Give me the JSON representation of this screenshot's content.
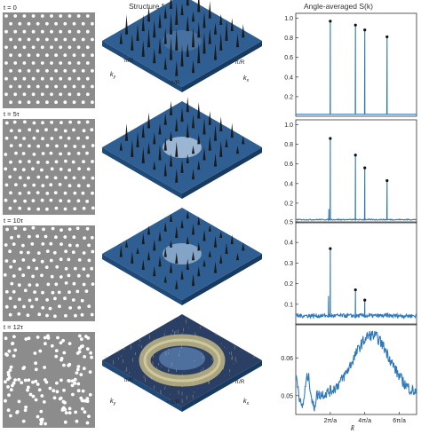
{
  "headers": {
    "col2": "Structure factor, S(k)",
    "col3": "Angle-averaged S(k)"
  },
  "colors": {
    "panel_gray": "#8c8c8c",
    "particle": "#ffffff",
    "line": "#2f78b9",
    "marker": "#111111",
    "surface_blue": "#2f5f92",
    "ring_yellow": "#b8b083"
  },
  "chart_data": [
    {
      "type": "scatter",
      "name": "particles-0",
      "time_label": "t = 0",
      "arrangement": "triangular-lattice",
      "particle_color": "#ffffff",
      "background_color": "#8c8c8c"
    },
    {
      "type": "scatter",
      "name": "particles-1",
      "time_label": "t = 5τ",
      "arrangement": "mostly-ordered",
      "particle_color": "#ffffff",
      "background_color": "#8c8c8c"
    },
    {
      "type": "scatter",
      "name": "particles-2",
      "time_label": "t = 10τ",
      "arrangement": "partly-ordered",
      "particle_color": "#ffffff",
      "background_color": "#8c8c8c"
    },
    {
      "type": "scatter",
      "name": "particles-3",
      "time_label": "t = 12τ",
      "arrangement": "disordered",
      "particle_color": "#ffffff",
      "background_color": "#8c8c8c"
    },
    {
      "type": "heatmap",
      "name": "structure-factor-0",
      "surface": "sharp-bragg-peaks",
      "axis_labels": {
        "ky": "k_y",
        "kx": "k_x"
      },
      "tick_labels": [
        "π/R",
        "−π/R",
        "π/R",
        "−π/R"
      ],
      "show_ky_label": false,
      "show_kx_label": true,
      "tick_labels_shown": [
        "π/R",
        "−π/R",
        "π/R"
      ]
    },
    {
      "type": "heatmap",
      "name": "structure-factor-1",
      "surface": "bragg-peaks-diffuse-center"
    },
    {
      "type": "heatmap",
      "name": "structure-factor-2",
      "surface": "weaker-bragg-peaks"
    },
    {
      "type": "heatmap",
      "name": "structure-factor-3",
      "surface": "ring",
      "tick_labels_shown": [
        "π/R",
        "−π/R",
        "π/R"
      ],
      "show_kx_label": true,
      "show_ky_label": true
    },
    {
      "type": "line",
      "name": "angle-averaged-0",
      "xlim": [
        0,
        7.0
      ],
      "ylim": [
        0,
        1.05
      ],
      "yticks": [
        0.2,
        0.4,
        0.6,
        0.8,
        1.0
      ],
      "ytick_labels": [
        "0.2",
        "0.4",
        "0.6",
        "0.8",
        "1.0"
      ],
      "baseline": 0.02,
      "peaks": [
        [
          2.0,
          0.97,
          "marker"
        ],
        [
          3.46,
          0.93,
          "marker"
        ],
        [
          4.0,
          0.88,
          "marker"
        ],
        [
          5.29,
          0.81,
          "marker"
        ]
      ],
      "noise": 0.0
    },
    {
      "type": "line",
      "name": "angle-averaged-1",
      "xlim": [
        0,
        7.0
      ],
      "ylim": [
        0,
        1.05
      ],
      "yticks": [
        0.2,
        0.4,
        0.6,
        0.8,
        1.0
      ],
      "ytick_labels": [
        "0.2",
        "0.4",
        "0.6",
        "0.8",
        "1.0"
      ],
      "baseline": 0.03,
      "peaks": [
        [
          1.92,
          0.14,
          "small"
        ],
        [
          2.0,
          0.86,
          "marker"
        ],
        [
          3.46,
          0.69,
          "marker"
        ],
        [
          4.0,
          0.56,
          "marker"
        ],
        [
          5.29,
          0.43,
          "marker"
        ]
      ],
      "noise": 0.01
    },
    {
      "type": "line",
      "name": "angle-averaged-2",
      "xlim": [
        0,
        7.0
      ],
      "ylim": [
        0,
        0.5
      ],
      "yticks": [
        0.1,
        0.2,
        0.3,
        0.4,
        0.5
      ],
      "ytick_labels": [
        "0.1",
        "0.2",
        "0.3",
        "0.4",
        "0.5"
      ],
      "baseline": 0.04,
      "peaks": [
        [
          2.0,
          0.37,
          "marker"
        ],
        [
          3.46,
          0.17,
          "marker"
        ],
        [
          4.0,
          0.12,
          "marker"
        ],
        [
          1.9,
          0.14,
          "small"
        ]
      ],
      "noise": 0.02
    },
    {
      "type": "line",
      "name": "angle-averaged-3",
      "xlim": [
        0,
        7.0
      ],
      "ylim": [
        0.045,
        0.069
      ],
      "yticks": [
        0.05,
        0.06
      ],
      "ytick_labels": [
        "0.05",
        "0.06"
      ],
      "broad_peak": {
        "center": 4.4,
        "height": 0.066,
        "base": 0.05
      },
      "noise": 0.003,
      "xticks": [
        2,
        4,
        6
      ],
      "xtick_labels": [
        "2π/a",
        "4π/a",
        "6π/a"
      ],
      "xlabel": "k̄"
    }
  ]
}
